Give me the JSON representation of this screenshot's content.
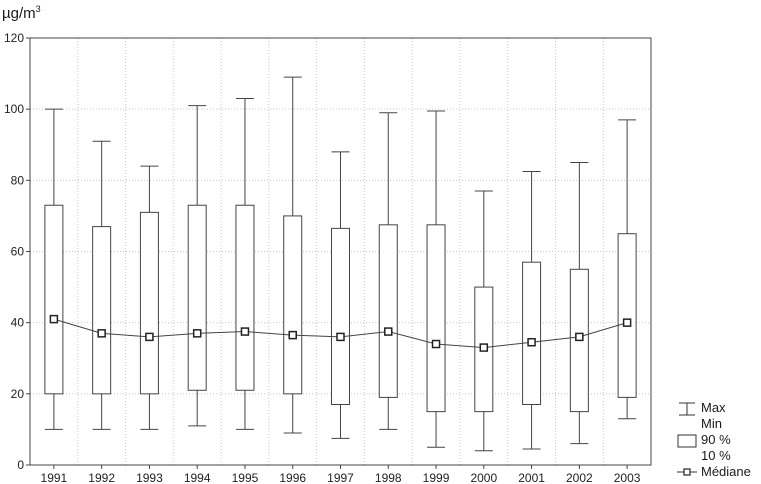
{
  "chart_data": {
    "type": "boxplot",
    "unit": "µg/m",
    "unit_superscript": "3",
    "ylim": [
      0,
      120
    ],
    "yticks": [
      "0",
      "20",
      "40",
      "60",
      "80",
      "100",
      "120"
    ],
    "grid": true,
    "legend_position": "bottom-right",
    "categories": [
      "1991",
      "1992",
      "1993",
      "1994",
      "1995",
      "1996",
      "1997",
      "1998",
      "1999",
      "2000",
      "2001",
      "2002",
      "2003"
    ],
    "series": [
      {
        "name": "Max",
        "values": [
          100,
          91,
          84,
          101,
          103,
          109,
          88,
          99,
          99.5,
          77,
          82.5,
          85,
          97
        ]
      },
      {
        "name": "Min",
        "values": [
          10,
          10,
          10,
          11,
          10,
          9,
          7.5,
          10,
          5,
          4,
          4.5,
          6,
          13
        ]
      },
      {
        "name": "90 %",
        "values": [
          73,
          67,
          71,
          73,
          73,
          70,
          66.5,
          67.5,
          67.5,
          50,
          57,
          55,
          65
        ]
      },
      {
        "name": "10 %",
        "values": [
          20,
          20,
          20,
          21,
          21,
          20,
          17,
          19,
          15,
          15,
          17,
          15,
          19
        ]
      },
      {
        "name": "Médiane",
        "values": [
          41,
          37,
          36,
          37,
          37.5,
          36.5,
          36,
          37.5,
          34,
          33,
          34.5,
          36,
          40
        ]
      }
    ]
  },
  "legend": {
    "max": "Max",
    "min": "Min",
    "p90": "90 %",
    "p10": "10 %",
    "median": "Médiane"
  }
}
